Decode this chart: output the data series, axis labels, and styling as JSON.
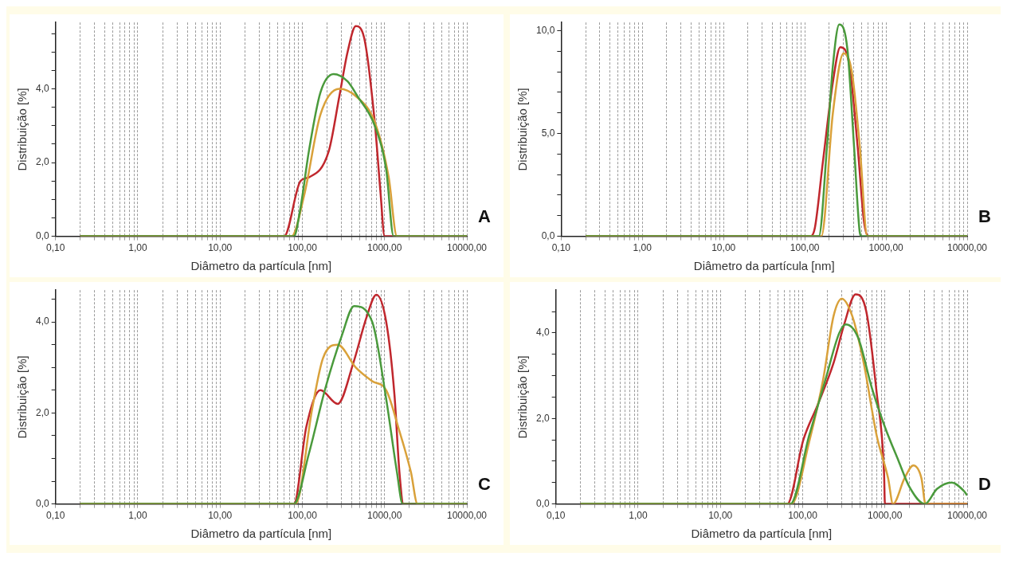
{
  "chart_data": [
    {
      "type": "line",
      "xlabel": "Diâmetro da partícula [nm]",
      "ylabel": "Distribuição [%]",
      "annotations": [
        "A"
      ],
      "log": "x",
      "grid": "x",
      "legend": false,
      "marker": "none",
      "line_style": "solid",
      "xlim": [
        0.1,
        10000
      ],
      "xticks": [
        {
          "value": 0.1,
          "label": "0,10"
        },
        {
          "value": 0.2,
          "label": null
        },
        {
          "value": 0.3,
          "label": null
        },
        {
          "value": 0.4,
          "label": null
        },
        {
          "value": 0.5,
          "label": null
        },
        {
          "value": 0.6,
          "label": null
        },
        {
          "value": 0.7,
          "label": null
        },
        {
          "value": 0.8,
          "label": null
        },
        {
          "value": 0.9,
          "label": null
        },
        {
          "value": 1,
          "label": "1,00"
        },
        {
          "value": 2,
          "label": null
        },
        {
          "value": 3,
          "label": null
        },
        {
          "value": 4,
          "label": null
        },
        {
          "value": 5,
          "label": null
        },
        {
          "value": 6,
          "label": null
        },
        {
          "value": 7,
          "label": null
        },
        {
          "value": 8,
          "label": null
        },
        {
          "value": 9,
          "label": null
        },
        {
          "value": 10,
          "label": "10,00"
        },
        {
          "value": 20,
          "label": null
        },
        {
          "value": 30,
          "label": null
        },
        {
          "value": 40,
          "label": null
        },
        {
          "value": 50,
          "label": null
        },
        {
          "value": 60,
          "label": null
        },
        {
          "value": 70,
          "label": null
        },
        {
          "value": 80,
          "label": null
        },
        {
          "value": 90,
          "label": null
        },
        {
          "value": 100,
          "label": "100,00"
        },
        {
          "value": 200,
          "label": null
        },
        {
          "value": 300,
          "label": null
        },
        {
          "value": 400,
          "label": null
        },
        {
          "value": 500,
          "label": null
        },
        {
          "value": 600,
          "label": null
        },
        {
          "value": 700,
          "label": null
        },
        {
          "value": 800,
          "label": null
        },
        {
          "value": 900,
          "label": null
        },
        {
          "value": 1000,
          "label": "1000,00"
        },
        {
          "value": 2000,
          "label": null
        },
        {
          "value": 3000,
          "label": null
        },
        {
          "value": 4000,
          "label": null
        },
        {
          "value": 5000,
          "label": null
        },
        {
          "value": 6000,
          "label": null
        },
        {
          "value": 7000,
          "label": null
        },
        {
          "value": 8000,
          "label": null
        },
        {
          "value": 9000,
          "label": null
        },
        {
          "value": 10000,
          "label": "10000,00"
        }
      ],
      "ylim": [
        0,
        5.8
      ],
      "yticks": [
        {
          "value": 0,
          "label": "0,0"
        },
        {
          "value": 0.5,
          "label": null
        },
        {
          "value": 1,
          "label": null
        },
        {
          "value": 1.5,
          "label": null
        },
        {
          "value": 2,
          "label": "2,0"
        },
        {
          "value": 2.5,
          "label": null
        },
        {
          "value": 3,
          "label": null
        },
        {
          "value": 3.5,
          "label": null
        },
        {
          "value": 4,
          "label": "4,0"
        },
        {
          "value": 4.5,
          "label": null
        },
        {
          "value": 5,
          "label": null
        },
        {
          "value": 5.5,
          "label": null
        }
      ],
      "series": [
        {
          "color": "#4a9a3c",
          "x": [
            0.2,
            79,
            95,
            120,
            166,
            240,
            355,
            468,
            759,
            1047,
            1288,
            10000
          ],
          "values": [
            0,
            0,
            0.77,
            2.3,
            3.9,
            4.4,
            4.2,
            3.8,
            3.0,
            1.8,
            0,
            0
          ]
        },
        {
          "color": "#d9a13a",
          "x": [
            0.2,
            74,
            105,
            166,
            282,
            447,
            759,
            1122,
            1413,
            10000
          ],
          "values": [
            0,
            0,
            1.1,
            3.3,
            4.0,
            3.8,
            3.1,
            1.6,
            0,
            0
          ]
        },
        {
          "color": "#c0272d",
          "x": [
            0.2,
            60,
            95,
            120,
            209,
            282,
            355,
            447,
            562,
            759,
            891,
            1000,
            10000
          ],
          "values": [
            0,
            0,
            1.5,
            1.6,
            2.3,
            3.8,
            5.0,
            5.7,
            5.4,
            3.1,
            1.2,
            0,
            0
          ]
        }
      ]
    },
    {
      "type": "line",
      "xlabel": "Diâmetro da partícula [nm]",
      "ylabel": "Distribuição [%]",
      "annotations": [
        "B"
      ],
      "log": "x",
      "grid": "x",
      "legend": false,
      "marker": "none",
      "line_style": "solid",
      "xlim": [
        0.1,
        10000
      ],
      "xticks": [
        {
          "value": 0.1,
          "label": "0,10"
        },
        {
          "value": 0.2,
          "label": null
        },
        {
          "value": 0.3,
          "label": null
        },
        {
          "value": 0.4,
          "label": null
        },
        {
          "value": 0.5,
          "label": null
        },
        {
          "value": 0.6,
          "label": null
        },
        {
          "value": 0.7,
          "label": null
        },
        {
          "value": 0.8,
          "label": null
        },
        {
          "value": 0.9,
          "label": null
        },
        {
          "value": 1,
          "label": "1,00"
        },
        {
          "value": 2,
          "label": null
        },
        {
          "value": 3,
          "label": null
        },
        {
          "value": 4,
          "label": null
        },
        {
          "value": 5,
          "label": null
        },
        {
          "value": 6,
          "label": null
        },
        {
          "value": 7,
          "label": null
        },
        {
          "value": 8,
          "label": null
        },
        {
          "value": 9,
          "label": null
        },
        {
          "value": 10,
          "label": "10,00"
        },
        {
          "value": 20,
          "label": null
        },
        {
          "value": 30,
          "label": null
        },
        {
          "value": 40,
          "label": null
        },
        {
          "value": 50,
          "label": null
        },
        {
          "value": 60,
          "label": null
        },
        {
          "value": 70,
          "label": null
        },
        {
          "value": 80,
          "label": null
        },
        {
          "value": 90,
          "label": null
        },
        {
          "value": 100,
          "label": "100,00"
        },
        {
          "value": 200,
          "label": null
        },
        {
          "value": 300,
          "label": null
        },
        {
          "value": 400,
          "label": null
        },
        {
          "value": 500,
          "label": null
        },
        {
          "value": 600,
          "label": null
        },
        {
          "value": 700,
          "label": null
        },
        {
          "value": 800,
          "label": null
        },
        {
          "value": 900,
          "label": null
        },
        {
          "value": 1000,
          "label": "1000,00"
        },
        {
          "value": 2000,
          "label": null
        },
        {
          "value": 3000,
          "label": null
        },
        {
          "value": 4000,
          "label": null
        },
        {
          "value": 5000,
          "label": null
        },
        {
          "value": 6000,
          "label": null
        },
        {
          "value": 7000,
          "label": null
        },
        {
          "value": 8000,
          "label": null
        },
        {
          "value": 9000,
          "label": null
        },
        {
          "value": 10000,
          "label": "10000,00"
        }
      ],
      "ylim": [
        0,
        10.4
      ],
      "yticks": [
        {
          "value": 0,
          "label": "0,0"
        },
        {
          "value": 1,
          "label": null
        },
        {
          "value": 2,
          "label": null
        },
        {
          "value": 3,
          "label": null
        },
        {
          "value": 4,
          "label": null
        },
        {
          "value": 5,
          "label": "5,0"
        },
        {
          "value": 6,
          "label": null
        },
        {
          "value": 7,
          "label": null
        },
        {
          "value": 8,
          "label": null
        },
        {
          "value": 9,
          "label": null
        },
        {
          "value": 10,
          "label": "10,0"
        }
      ],
      "series": [
        {
          "color": "#4a9a3c",
          "x": [
            0.2,
            149,
            188,
            222,
            266,
            335,
            404,
            475,
            497,
            10000
          ],
          "values": [
            0,
            0,
            4.4,
            8.3,
            10.3,
            9.1,
            4.4,
            0.2,
            0,
            0
          ]
        },
        {
          "color": "#d9a13a",
          "x": [
            0.2,
            160,
            222,
            300,
            380,
            475,
            590,
            10000
          ],
          "values": [
            0,
            0,
            6.0,
            8.9,
            8.0,
            4.4,
            0,
            0
          ]
        },
        {
          "color": "#c0272d",
          "x": [
            0.2,
            118,
            133,
            167,
            222,
            274,
            355,
            447,
            537,
            610,
            10000
          ],
          "values": [
            0,
            0,
            0.4,
            3.6,
            7.5,
            9.2,
            8.3,
            4.4,
            0.7,
            0,
            0
          ]
        }
      ]
    },
    {
      "type": "line",
      "xlabel": "Diâmetro da partícula [nm]",
      "ylabel": "Distribuição [%]",
      "annotations": [
        "C"
      ],
      "log": "x",
      "grid": "x",
      "legend": false,
      "marker": "none",
      "line_style": "solid",
      "xlim": [
        0.1,
        10000
      ],
      "xticks": [
        {
          "value": 0.1,
          "label": "0,10"
        },
        {
          "value": 0.2,
          "label": null
        },
        {
          "value": 0.3,
          "label": null
        },
        {
          "value": 0.4,
          "label": null
        },
        {
          "value": 0.5,
          "label": null
        },
        {
          "value": 0.6,
          "label": null
        },
        {
          "value": 0.7,
          "label": null
        },
        {
          "value": 0.8,
          "label": null
        },
        {
          "value": 0.9,
          "label": null
        },
        {
          "value": 1,
          "label": "1,00"
        },
        {
          "value": 2,
          "label": null
        },
        {
          "value": 3,
          "label": null
        },
        {
          "value": 4,
          "label": null
        },
        {
          "value": 5,
          "label": null
        },
        {
          "value": 6,
          "label": null
        },
        {
          "value": 7,
          "label": null
        },
        {
          "value": 8,
          "label": null
        },
        {
          "value": 9,
          "label": null
        },
        {
          "value": 10,
          "label": "10,00"
        },
        {
          "value": 20,
          "label": null
        },
        {
          "value": 30,
          "label": null
        },
        {
          "value": 40,
          "label": null
        },
        {
          "value": 50,
          "label": null
        },
        {
          "value": 60,
          "label": null
        },
        {
          "value": 70,
          "label": null
        },
        {
          "value": 80,
          "label": null
        },
        {
          "value": 90,
          "label": null
        },
        {
          "value": 100,
          "label": "100,00"
        },
        {
          "value": 200,
          "label": null
        },
        {
          "value": 300,
          "label": null
        },
        {
          "value": 400,
          "label": null
        },
        {
          "value": 500,
          "label": null
        },
        {
          "value": 600,
          "label": null
        },
        {
          "value": 700,
          "label": null
        },
        {
          "value": 800,
          "label": null
        },
        {
          "value": 900,
          "label": null
        },
        {
          "value": 1000,
          "label": "1000,00"
        },
        {
          "value": 2000,
          "label": null
        },
        {
          "value": 3000,
          "label": null
        },
        {
          "value": 4000,
          "label": null
        },
        {
          "value": 5000,
          "label": null
        },
        {
          "value": 6000,
          "label": null
        },
        {
          "value": 7000,
          "label": null
        },
        {
          "value": 8000,
          "label": null
        },
        {
          "value": 9000,
          "label": null
        },
        {
          "value": 10000,
          "label": "10000,00"
        }
      ],
      "ylim": [
        0,
        4.7
      ],
      "yticks": [
        {
          "value": 0,
          "label": "0,0"
        },
        {
          "value": 0.5,
          "label": null
        },
        {
          "value": 1,
          "label": null
        },
        {
          "value": 1.5,
          "label": null
        },
        {
          "value": 2,
          "label": "2,0"
        },
        {
          "value": 2.5,
          "label": null
        },
        {
          "value": 3,
          "label": null
        },
        {
          "value": 3.5,
          "label": null
        },
        {
          "value": 4,
          "label": "4,0"
        },
        {
          "value": 4.5,
          "label": null
        }
      ],
      "series": [
        {
          "color": "#4a9a3c",
          "x": [
            0.2,
            79,
            120,
            191,
            302,
            427,
            708,
            1047,
            1413,
            1660,
            10000
          ],
          "values": [
            0,
            0,
            1.1,
            2.55,
            3.7,
            4.35,
            4.0,
            2.3,
            0.7,
            0,
            0
          ]
        },
        {
          "color": "#d9a13a",
          "x": [
            0.2,
            83,
            132,
            178,
            269,
            447,
            708,
            1047,
            1514,
            2089,
            2512,
            10000
          ],
          "values": [
            0,
            0,
            2.1,
            3.2,
            3.5,
            3.0,
            2.7,
            2.5,
            1.6,
            0.7,
            0,
            0
          ]
        },
        {
          "color": "#c0272d",
          "x": [
            0.2,
            79,
            112,
            166,
            269,
            417,
            603,
            794,
            1047,
            1318,
            1514,
            1698,
            10000
          ],
          "values": [
            0,
            0,
            1.7,
            2.5,
            2.2,
            3.1,
            4.1,
            4.6,
            4.0,
            2.4,
            0.7,
            0,
            0
          ]
        }
      ]
    },
    {
      "type": "line",
      "xlabel": "Diâmetro da partícula [nm]",
      "ylabel": "Distribuição [%]",
      "annotations": [
        "D"
      ],
      "log": "x",
      "grid": "x",
      "legend": false,
      "marker": "none",
      "line_style": "solid",
      "xlim": [
        0.1,
        10000
      ],
      "xticks": [
        {
          "value": 0.1,
          "label": "0,10"
        },
        {
          "value": 0.2,
          "label": null
        },
        {
          "value": 0.3,
          "label": null
        },
        {
          "value": 0.4,
          "label": null
        },
        {
          "value": 0.5,
          "label": null
        },
        {
          "value": 0.6,
          "label": null
        },
        {
          "value": 0.7,
          "label": null
        },
        {
          "value": 0.8,
          "label": null
        },
        {
          "value": 0.9,
          "label": null
        },
        {
          "value": 1,
          "label": "1,00"
        },
        {
          "value": 2,
          "label": null
        },
        {
          "value": 3,
          "label": null
        },
        {
          "value": 4,
          "label": null
        },
        {
          "value": 5,
          "label": null
        },
        {
          "value": 6,
          "label": null
        },
        {
          "value": 7,
          "label": null
        },
        {
          "value": 8,
          "label": null
        },
        {
          "value": 9,
          "label": null
        },
        {
          "value": 10,
          "label": "10,00"
        },
        {
          "value": 20,
          "label": null
        },
        {
          "value": 30,
          "label": null
        },
        {
          "value": 40,
          "label": null
        },
        {
          "value": 50,
          "label": null
        },
        {
          "value": 60,
          "label": null
        },
        {
          "value": 70,
          "label": null
        },
        {
          "value": 80,
          "label": null
        },
        {
          "value": 90,
          "label": null
        },
        {
          "value": 100,
          "label": "100,00"
        },
        {
          "value": 200,
          "label": null
        },
        {
          "value": 300,
          "label": null
        },
        {
          "value": 400,
          "label": null
        },
        {
          "value": 500,
          "label": null
        },
        {
          "value": 600,
          "label": null
        },
        {
          "value": 700,
          "label": null
        },
        {
          "value": 800,
          "label": null
        },
        {
          "value": 900,
          "label": null
        },
        {
          "value": 1000,
          "label": "1000,00"
        },
        {
          "value": 2000,
          "label": null
        },
        {
          "value": 3000,
          "label": null
        },
        {
          "value": 4000,
          "label": null
        },
        {
          "value": 5000,
          "label": null
        },
        {
          "value": 6000,
          "label": null
        },
        {
          "value": 7000,
          "label": null
        },
        {
          "value": 8000,
          "label": null
        },
        {
          "value": 9000,
          "label": null
        },
        {
          "value": 10000,
          "label": "10000,00"
        }
      ],
      "ylim": [
        0,
        5
      ],
      "yticks": [
        {
          "value": 0,
          "label": "0,0"
        },
        {
          "value": 0.5,
          "label": null
        },
        {
          "value": 1,
          "label": null
        },
        {
          "value": 1.5,
          "label": null
        },
        {
          "value": 2,
          "label": "2,0"
        },
        {
          "value": 2.5,
          "label": null
        },
        {
          "value": 3,
          "label": null
        },
        {
          "value": 3.5,
          "label": null
        },
        {
          "value": 4,
          "label": "4,0"
        },
        {
          "value": 4.5,
          "label": null
        }
      ],
      "series": [
        {
          "color": "#4a9a3c",
          "x": [
            0.2,
            71,
            120,
            189,
            279,
            335,
            470,
            697,
            1000,
            1470,
            1984,
            3064,
            4290,
            6480,
            9140,
            10000
          ],
          "values": [
            0,
            0,
            1.6,
            2.9,
            4.0,
            4.2,
            3.9,
            2.7,
            1.8,
            1.0,
            0.4,
            0,
            0.35,
            0.5,
            0.3,
            0.2
          ]
        },
        {
          "color": "#d9a13a",
          "x": [
            0.2,
            73,
            120,
            177,
            238,
            299,
            400,
            552,
            794,
            1094,
            1254,
            1730,
            2218,
            2780,
            3116,
            10000
          ],
          "values": [
            0,
            0,
            1.45,
            2.9,
            4.4,
            4.8,
            4.4,
            3.3,
            1.6,
            0.6,
            0,
            0.6,
            0.9,
            0.6,
            0,
            0
          ]
        },
        {
          "color": "#c0272d",
          "x": [
            0.2,
            65,
            102,
            151,
            238,
            320,
            440,
            594,
            794,
            977,
            1000,
            10000
          ],
          "values": [
            0,
            0,
            1.5,
            2.3,
            3.3,
            4.2,
            4.9,
            4.5,
            2.6,
            0.7,
            0,
            0
          ]
        }
      ]
    }
  ]
}
